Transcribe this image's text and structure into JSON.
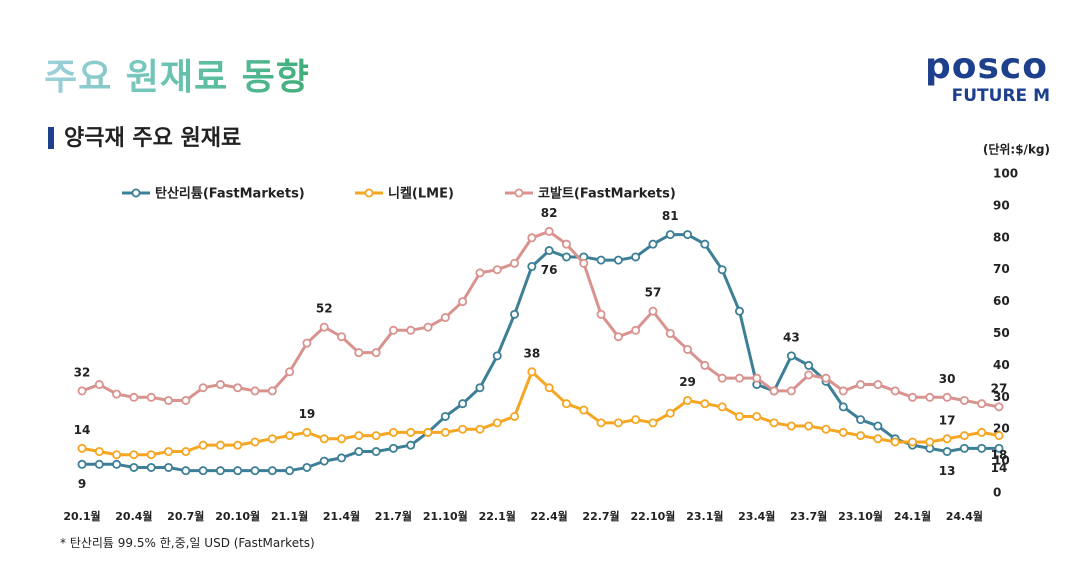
{
  "slide": {
    "title": "주요 원재료 동향",
    "logo": {
      "brand": "posco",
      "sub": "FUTURE M"
    },
    "footnote": "* 탄산리튬 99.5% 한,중,일 USD (FastMarkets)"
  },
  "chart_data": {
    "type": "line",
    "title": "양극재 주요 원재료",
    "y_label": "(단위:$/kg)",
    "categories": [
      "20.1월",
      null,
      null,
      "20.4월",
      null,
      null,
      "20.7월",
      null,
      null,
      "20.10월",
      null,
      null,
      "21.1월",
      null,
      null,
      "21.4월",
      null,
      null,
      "21.7월",
      null,
      null,
      "21.10월",
      null,
      null,
      "22.1월",
      null,
      null,
      "22.4월",
      null,
      null,
      "22.7월",
      null,
      null,
      "22.10월",
      null,
      null,
      "23.1월",
      null,
      null,
      "23.4월",
      null,
      null,
      "23.7월",
      null,
      null,
      "23.10월",
      null,
      null,
      "24.1월",
      null,
      null,
      "24.4월",
      null,
      null
    ],
    "ylim": [
      0,
      100
    ],
    "yticks": [
      0,
      10,
      20,
      30,
      40,
      50,
      60,
      70,
      80,
      90,
      100
    ],
    "grid": false,
    "legend": "top-left",
    "series": [
      {
        "name": "탄산리튬(FastMarkets)",
        "color": "#3d7f96",
        "values": [
          9,
          9,
          9,
          8,
          8,
          8,
          7,
          7,
          7,
          7,
          7,
          7,
          7,
          8,
          10,
          11,
          13,
          13,
          14,
          15,
          19,
          24,
          28,
          33,
          43,
          56,
          71,
          76,
          74,
          74,
          73,
          73,
          74,
          78,
          81,
          81,
          78,
          70,
          57,
          34,
          32,
          43,
          40,
          35,
          27,
          23,
          21,
          17,
          15,
          14,
          13,
          14,
          14,
          14
        ],
        "value_labels": [
          "9",
          null,
          null,
          null,
          null,
          null,
          null,
          null,
          null,
          null,
          null,
          null,
          null,
          null,
          null,
          null,
          null,
          null,
          null,
          null,
          null,
          null,
          null,
          null,
          null,
          null,
          null,
          "76",
          null,
          null,
          null,
          null,
          null,
          null,
          "81",
          null,
          null,
          null,
          null,
          null,
          null,
          "43",
          null,
          null,
          null,
          null,
          null,
          null,
          null,
          null,
          "13",
          null,
          null,
          "14"
        ]
      },
      {
        "name": "니켈(LME)",
        "color": "#f5a623",
        "values": [
          14,
          13,
          12,
          12,
          12,
          13,
          13,
          15,
          15,
          15,
          16,
          17,
          18,
          19,
          17,
          17,
          18,
          18,
          19,
          19,
          19,
          19,
          20,
          20,
          22,
          24,
          38,
          33,
          28,
          26,
          22,
          22,
          23,
          22,
          25,
          29,
          28,
          27,
          24,
          24,
          22,
          21,
          21,
          20,
          19,
          18,
          17,
          16,
          16,
          16,
          17,
          18,
          19,
          18
        ],
        "value_labels": [
          "14",
          null,
          null,
          null,
          null,
          null,
          null,
          null,
          null,
          null,
          null,
          null,
          null,
          "19",
          null,
          null,
          null,
          null,
          null,
          null,
          null,
          null,
          null,
          null,
          null,
          null,
          "38",
          null,
          null,
          null,
          null,
          null,
          null,
          null,
          null,
          "29",
          null,
          null,
          null,
          null,
          null,
          null,
          null,
          null,
          null,
          null,
          null,
          null,
          null,
          null,
          "17",
          null,
          null,
          "18"
        ]
      },
      {
        "name": "코발트(FastMarkets)",
        "color": "#d9938f",
        "values": [
          32,
          34,
          31,
          30,
          30,
          29,
          29,
          33,
          34,
          33,
          32,
          32,
          38,
          47,
          52,
          49,
          44,
          44,
          51,
          51,
          52,
          55,
          60,
          69,
          70,
          72,
          80,
          82,
          78,
          72,
          56,
          49,
          51,
          57,
          50,
          45,
          40,
          36,
          36,
          36,
          32,
          32,
          37,
          36,
          32,
          34,
          34,
          32,
          30,
          30,
          30,
          29,
          28,
          27
        ],
        "value_labels": [
          "32",
          null,
          null,
          null,
          null,
          null,
          null,
          null,
          null,
          null,
          null,
          null,
          null,
          null,
          "52",
          null,
          null,
          null,
          null,
          null,
          null,
          null,
          null,
          null,
          null,
          null,
          null,
          "82",
          null,
          null,
          null,
          null,
          null,
          "57",
          null,
          null,
          null,
          null,
          null,
          null,
          null,
          null,
          null,
          null,
          null,
          null,
          null,
          null,
          null,
          null,
          "30",
          null,
          null,
          "27"
        ]
      }
    ]
  }
}
